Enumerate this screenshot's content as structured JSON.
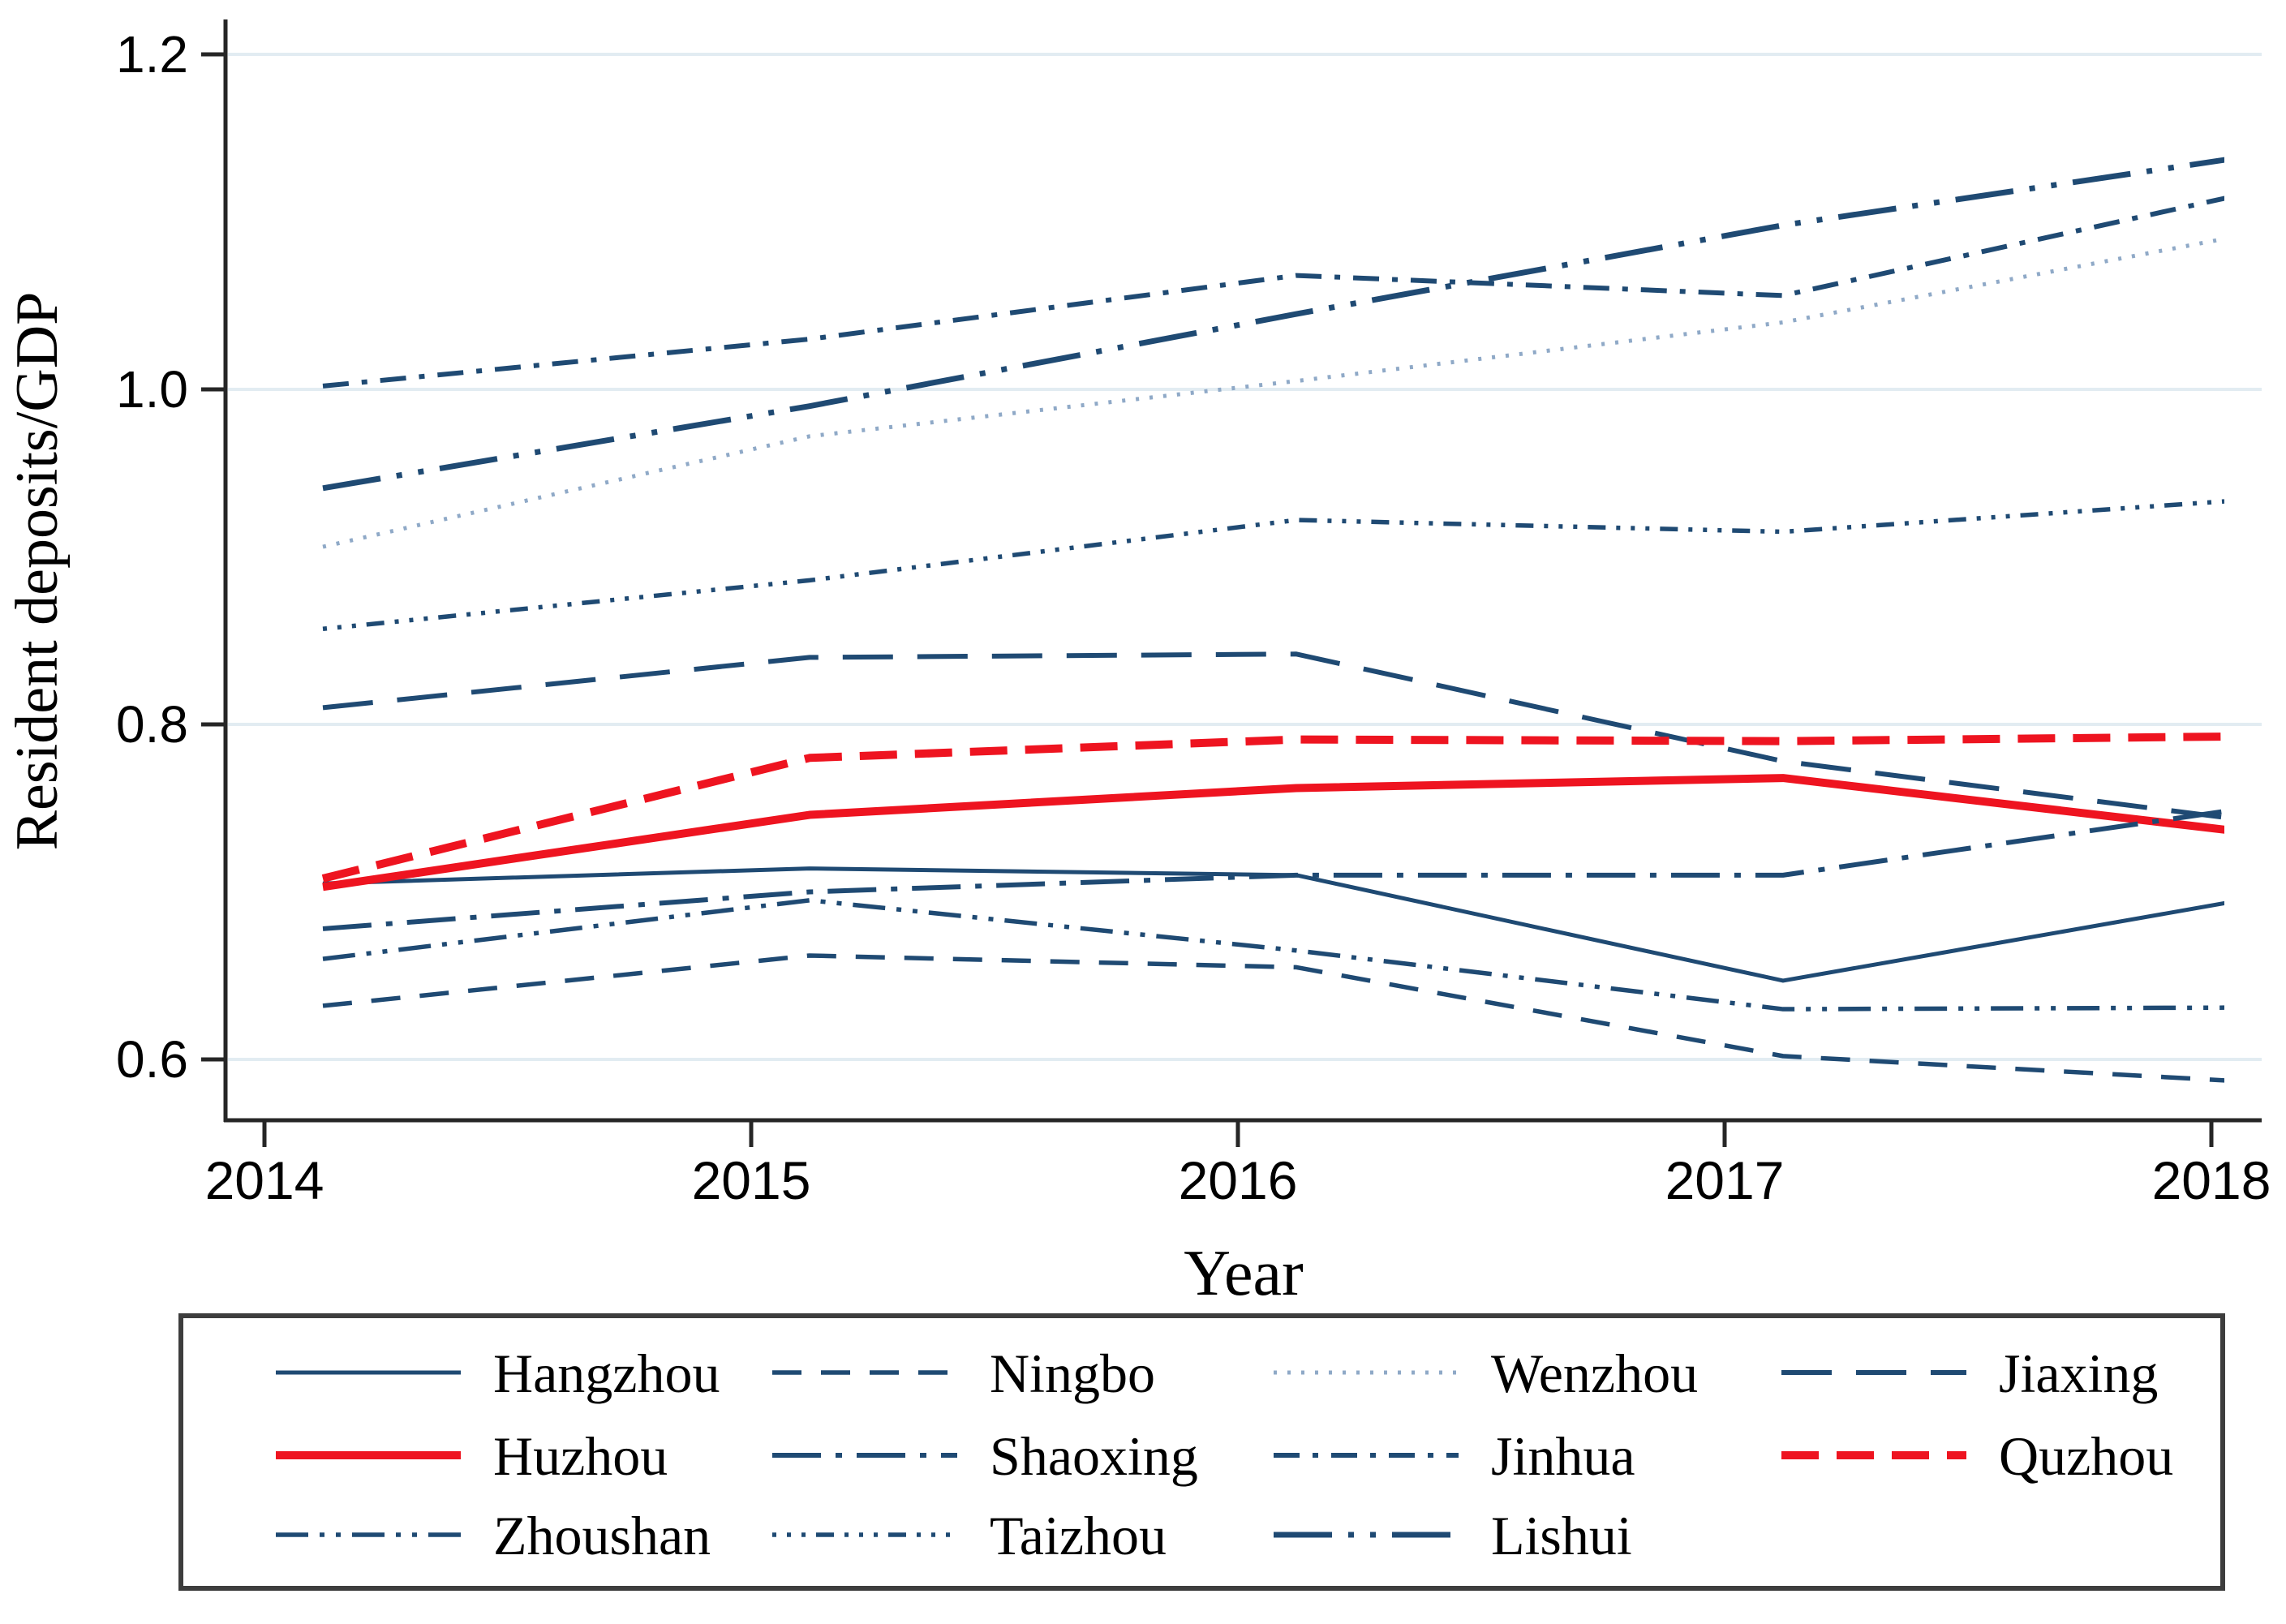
{
  "chart_data": {
    "type": "line",
    "title": "",
    "xlabel": "Year",
    "ylabel": "Resident deposits/GDP",
    "x": [
      2014,
      2015,
      2016,
      2017,
      2018
    ],
    "xtick_labels": [
      "2014",
      "2015",
      "2016",
      "2017",
      "2018"
    ],
    "ytick_values": [
      0.6,
      0.8,
      1.0,
      1.2
    ],
    "ytick_labels": [
      "0.6",
      "0.8",
      "1.0",
      "1.2"
    ],
    "ylim": [
      0.55,
      1.23
    ],
    "grid": "horizontal-only",
    "legend_position": "bottom-box",
    "legend_columns": 4,
    "colors": {
      "navy": "#1f4a73",
      "red": "#ee1420",
      "light_blue": "#8fa9c7",
      "gridline": "#e2ecf2",
      "axis": "#262626",
      "legend_border": "#3d3d3d",
      "background": "#ffffff"
    },
    "series": [
      {
        "name": "Hangzhou",
        "color": "navy",
        "dash": "solid",
        "width": 5,
        "values": [
          0.705,
          0.714,
          0.71,
          0.647,
          0.698
        ]
      },
      {
        "name": "Ningbo",
        "color": "navy",
        "dash": "dash",
        "width": 5.5,
        "values": [
          0.632,
          0.662,
          0.655,
          0.602,
          0.586
        ]
      },
      {
        "name": "Wenzhou",
        "color": "light_blue",
        "dash": "dot",
        "width": 5,
        "values": [
          0.906,
          0.972,
          1.005,
          1.04,
          1.095
        ]
      },
      {
        "name": "Jiaxing",
        "color": "navy",
        "dash": "longdash",
        "width": 6,
        "values": [
          0.81,
          0.84,
          0.842,
          0.778,
          0.741
        ]
      },
      {
        "name": "Huzhou",
        "color": "red",
        "dash": "solid",
        "width": 10,
        "values": [
          0.703,
          0.746,
          0.762,
          0.768,
          0.734
        ]
      },
      {
        "name": "Shaoxing",
        "color": "navy",
        "dash": "longdash-dot",
        "width": 6,
        "values": [
          0.678,
          0.7,
          0.71,
          0.71,
          0.752
        ]
      },
      {
        "name": "Jinhua",
        "color": "navy",
        "dash": "dash-dot",
        "width": 6,
        "values": [
          1.002,
          1.03,
          1.068,
          1.056,
          1.12
        ]
      },
      {
        "name": "Quzhou",
        "color": "red",
        "dash": "thick-dash",
        "width": 10,
        "values": [
          0.708,
          0.78,
          0.791,
          0.79,
          0.793
        ]
      },
      {
        "name": "Zhoushan",
        "color": "navy",
        "dash": "longdash-dot-dot",
        "width": 5.5,
        "values": [
          0.66,
          0.695,
          0.665,
          0.63,
          0.631
        ]
      },
      {
        "name": "Taizhou",
        "color": "navy",
        "dash": "dot-dot-dot-dash",
        "width": 5.5,
        "values": [
          0.857,
          0.886,
          0.922,
          0.915,
          0.935
        ]
      },
      {
        "name": "Lishui",
        "color": "navy",
        "dash": "longdash-dot-dot-wide",
        "width": 7,
        "values": [
          0.941,
          0.99,
          1.045,
          1.098,
          1.141
        ]
      }
    ]
  }
}
